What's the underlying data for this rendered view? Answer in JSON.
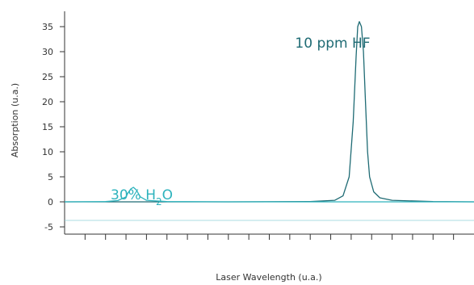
{
  "chart_data": {
    "type": "line",
    "title": "",
    "xlabel": "Laser Wavelength (u.a.)",
    "ylabel": "Absorption (u.a.)",
    "ylim": [
      -5,
      37
    ],
    "yticks": [
      -5,
      0,
      5,
      10,
      15,
      20,
      25,
      30,
      35
    ],
    "ytick_labels": [
      "-5",
      "0",
      "5",
      "10",
      "15",
      "20",
      "25",
      "30",
      "35"
    ],
    "xlim": [
      0,
      100
    ],
    "xticks": [
      5,
      10,
      15,
      20,
      25,
      30,
      35,
      40,
      45,
      50,
      55,
      60,
      65,
      70,
      75,
      80,
      85,
      90,
      95
    ],
    "grid": false,
    "series": [
      {
        "name": "HF",
        "color": "#1f6b74",
        "x": [
          0,
          10,
          20,
          40,
          60,
          66,
          68,
          69.5,
          70.5,
          71.2,
          71.6,
          72,
          72.5,
          73,
          73.5,
          74,
          74.5,
          75.5,
          77,
          80,
          90,
          100
        ],
        "y": [
          0,
          0,
          0,
          0,
          0.05,
          0.3,
          1.2,
          5,
          16,
          29,
          35,
          36,
          35,
          30,
          20,
          10,
          5,
          2,
          0.8,
          0.3,
          0.05,
          0
        ]
      },
      {
        "name": "H2O",
        "color": "#2db3bd",
        "x": [
          0,
          10,
          13,
          15,
          15.5,
          16.2,
          16.8,
          17.5,
          18.5,
          20,
          25,
          40,
          60,
          80,
          100
        ],
        "y": [
          0,
          0.05,
          0.25,
          1,
          1.8,
          2.6,
          2.9,
          2.4,
          1,
          0.3,
          0.05,
          0,
          0,
          0,
          0
        ]
      }
    ],
    "annotations": [
      {
        "id": "hf",
        "text": "10 ppm HF",
        "color": "#1f6b74",
        "x": 59,
        "y": 31.5
      },
      {
        "id": "h2o",
        "main": "30% H",
        "sub": "2",
        "tail": "O",
        "color": "#2db3bd",
        "x": 10,
        "y": 3.7
      }
    ]
  }
}
